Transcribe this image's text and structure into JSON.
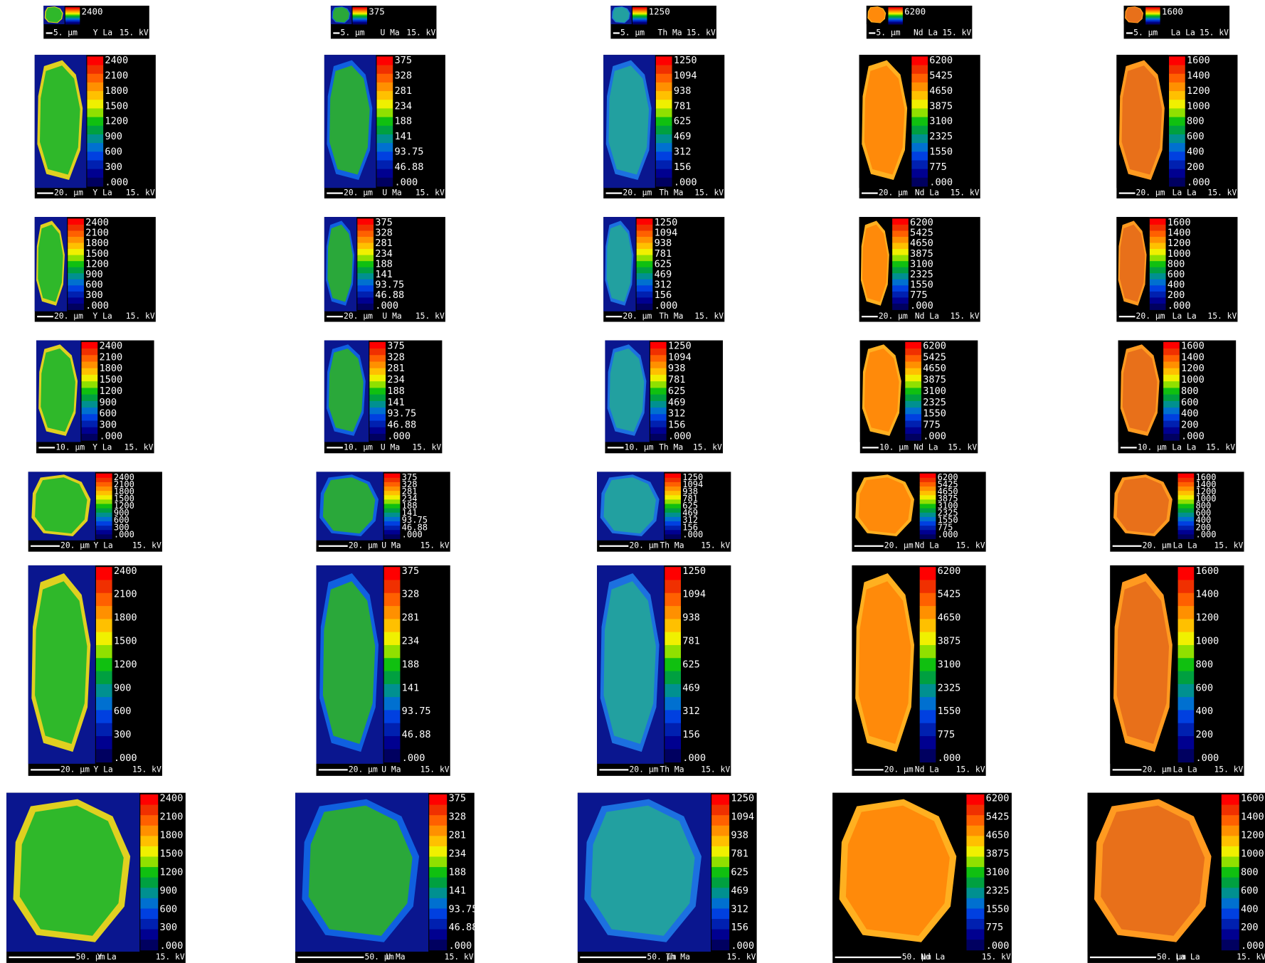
{
  "columns": [
    {
      "element": "Y La",
      "scale": [
        "2400",
        "2100",
        "1800",
        "1500",
        "1200",
        "900",
        "600",
        "300",
        ".000"
      ]
    },
    {
      "element": "U Ma",
      "scale": [
        "375",
        "328",
        "281",
        "234",
        "188",
        "141",
        "93.75",
        "46.88",
        ".000"
      ]
    },
    {
      "element": "Th Ma",
      "scale": [
        "1250",
        "1094",
        "938",
        "781",
        "625",
        "469",
        "312",
        "156",
        ".000"
      ]
    },
    {
      "element": "Nd La",
      "scale": [
        "6200",
        "5425",
        "4650",
        "3875",
        "3100",
        "2325",
        "1550",
        "775",
        ".000"
      ]
    },
    {
      "element": "La La",
      "scale": [
        "1600",
        "1400",
        "1200",
        "1000",
        "800",
        "600",
        "400",
        "200",
        ".000"
      ]
    }
  ],
  "rows": [
    {
      "scale_bar": "5. µm"
    },
    {
      "scale_bar": "20. µm"
    },
    {
      "scale_bar": "20. µm"
    },
    {
      "scale_bar": "10. µm"
    },
    {
      "scale_bar": "20. µm"
    },
    {
      "scale_bar": "20. µm"
    },
    {
      "scale_bar": "50. µm"
    }
  ],
  "voltage": "15. kV"
}
